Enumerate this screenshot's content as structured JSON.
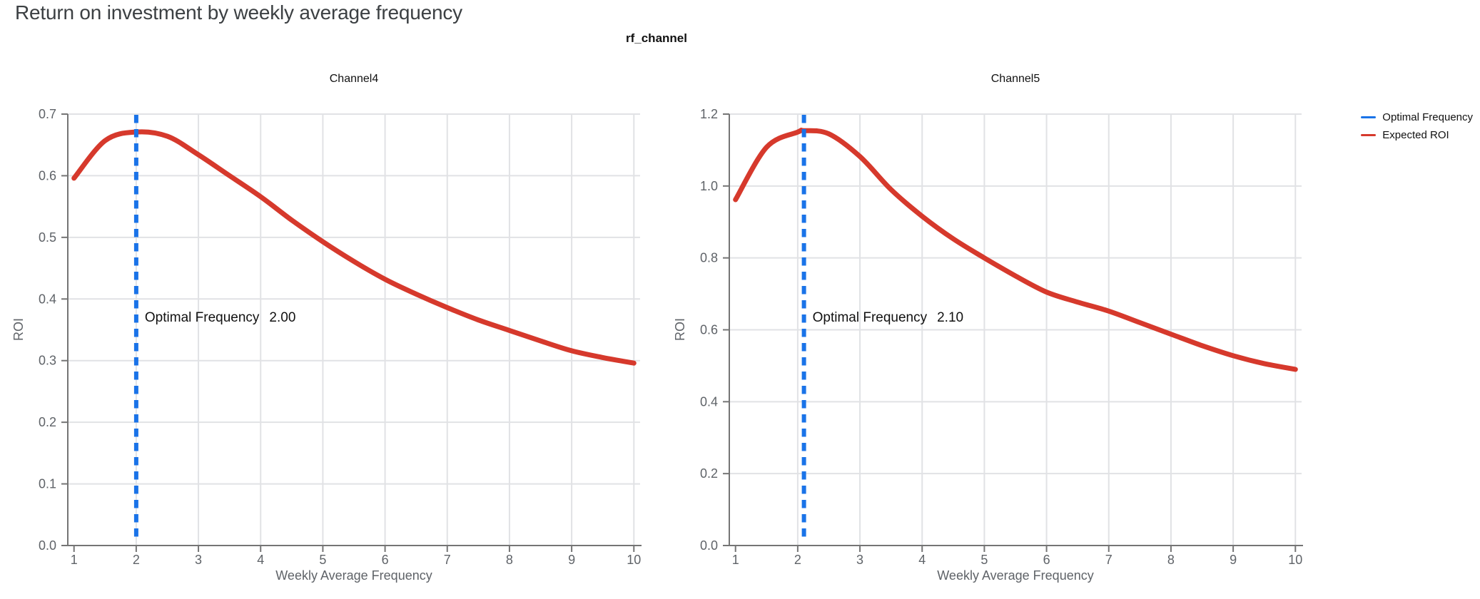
{
  "page": {
    "title": "Return on investment by weekly average frequency"
  },
  "figure": {
    "suptitle": "rf_channel",
    "legend": [
      {
        "label": "Optimal Frequency",
        "color": "#1a73e8"
      },
      {
        "label": "Expected ROI",
        "color": "#d6392c"
      }
    ]
  },
  "colors": {
    "grid": "#e1e2e5",
    "axis": "#757575",
    "tick_label": "#5f6368",
    "annotation": "#111111",
    "optimal_frequency": "#1a73e8",
    "expected_roi": "#d6392c"
  },
  "chart_data": [
    {
      "type": "line",
      "title": "Channel4",
      "xlabel": "Weekly Average Frequency",
      "ylabel": "ROI",
      "xlim": [
        0.9,
        10.1
      ],
      "ylim": [
        0.0,
        0.7
      ],
      "grid": true,
      "x_ticks": [
        1,
        2,
        3,
        4,
        5,
        6,
        7,
        8,
        9,
        10
      ],
      "x_tick_labels": [
        "1",
        "2",
        "3",
        "4",
        "5",
        "6",
        "7",
        "8",
        "9",
        "10"
      ],
      "y_ticks": [
        0.0,
        0.1,
        0.2,
        0.3,
        0.4,
        0.5,
        0.6,
        0.7
      ],
      "y_tick_labels": [
        "0.0",
        "0.1",
        "0.2",
        "0.3",
        "0.4",
        "0.5",
        "0.6",
        "0.7"
      ],
      "optimal_frequency": 2.0,
      "annotation": {
        "label": "Optimal Frequency",
        "value": "2.00"
      },
      "series": [
        {
          "name": "Expected ROI",
          "x": [
            1.0,
            1.5,
            2.0,
            2.5,
            3.0,
            3.5,
            4.0,
            4.5,
            5.0,
            5.5,
            6.0,
            6.5,
            7.0,
            7.5,
            8.0,
            8.5,
            9.0,
            9.5,
            10.0
          ],
          "y": [
            0.596,
            0.657,
            0.671,
            0.664,
            0.634,
            0.6,
            0.566,
            0.528,
            0.493,
            0.461,
            0.432,
            0.408,
            0.386,
            0.366,
            0.349,
            0.332,
            0.316,
            0.305,
            0.296
          ]
        }
      ]
    },
    {
      "type": "line",
      "title": "Channel5",
      "xlabel": "Weekly Average Frequency",
      "ylabel": "ROI",
      "xlim": [
        0.9,
        10.1
      ],
      "ylim": [
        0.0,
        1.2
      ],
      "grid": true,
      "x_ticks": [
        1,
        2,
        3,
        4,
        5,
        6,
        7,
        8,
        9,
        10
      ],
      "x_tick_labels": [
        "1",
        "2",
        "3",
        "4",
        "5",
        "6",
        "7",
        "8",
        "9",
        "10"
      ],
      "y_ticks": [
        0.0,
        0.2,
        0.4,
        0.6,
        0.8,
        1.0,
        1.2
      ],
      "y_tick_labels": [
        "0.0",
        "0.2",
        "0.4",
        "0.6",
        "0.8",
        "1.0",
        "1.2"
      ],
      "optimal_frequency": 2.1,
      "annotation": {
        "label": "Optimal Frequency",
        "value": "2.10"
      },
      "series": [
        {
          "name": "Expected ROI",
          "x": [
            1.0,
            1.5,
            2.0,
            2.1,
            2.5,
            3.0,
            3.5,
            4.0,
            4.5,
            5.0,
            5.5,
            6.0,
            6.5,
            7.0,
            7.5,
            8.0,
            8.5,
            9.0,
            9.5,
            10.0
          ],
          "y": [
            0.962,
            1.108,
            1.15,
            1.154,
            1.145,
            1.082,
            0.99,
            0.916,
            0.853,
            0.8,
            0.75,
            0.705,
            0.677,
            0.652,
            0.62,
            0.588,
            0.556,
            0.528,
            0.506,
            0.49
          ]
        }
      ]
    }
  ]
}
